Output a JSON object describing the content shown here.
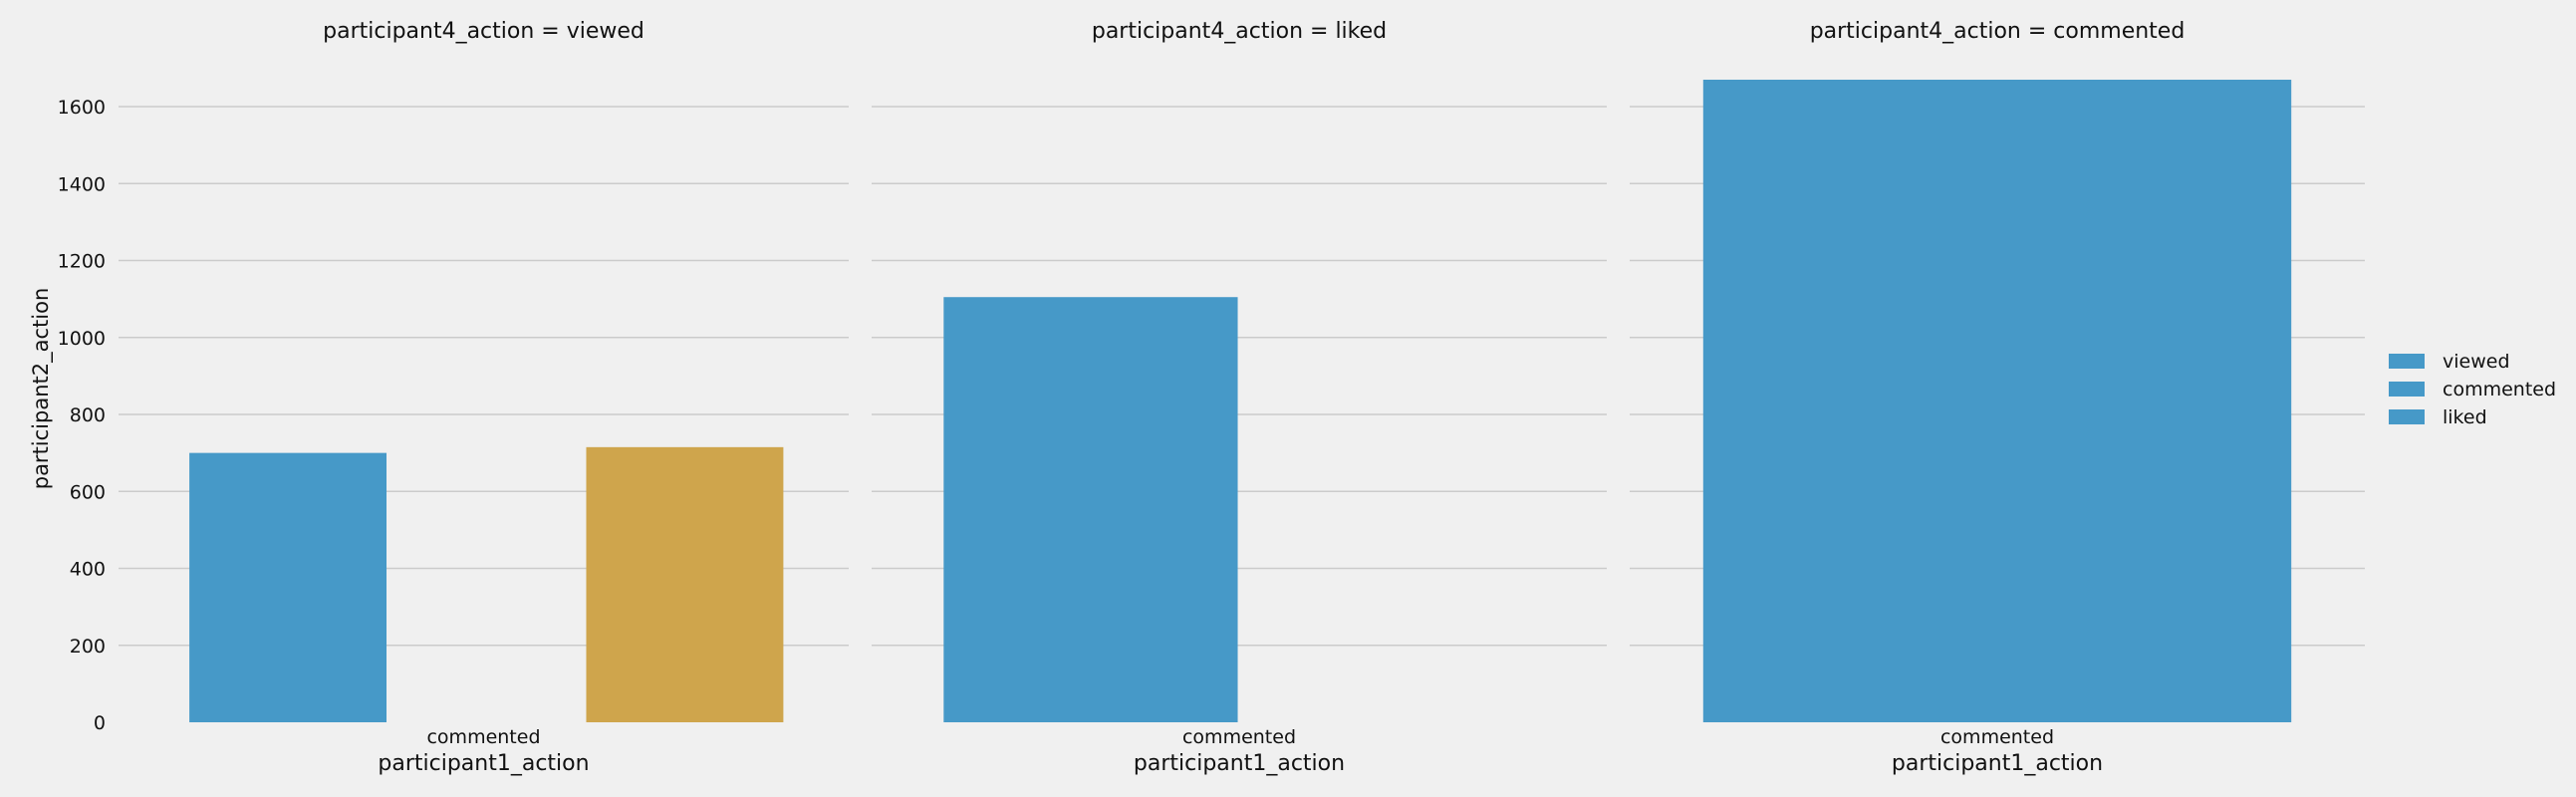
{
  "chart_data": {
    "type": "bar",
    "facet_variable": "participant4_action",
    "xlabel": "participant1_action",
    "ylabel": "participant2_action",
    "ylim": [
      0,
      1670
    ],
    "yticks": [
      0,
      200,
      400,
      600,
      800,
      1000,
      1200,
      1400,
      1600
    ],
    "grid": true,
    "legend": {
      "placement": "right",
      "entries": [
        {
          "label": "viewed",
          "color": "#4699c8"
        },
        {
          "label": "commented",
          "color": "#4699c8"
        },
        {
          "label": "liked",
          "color": "#4699c8"
        }
      ]
    },
    "colors": {
      "blue": "#4699c8",
      "gold": "#cfa54c",
      "background": "#f0f0f0",
      "grid": "#cbcbcb"
    },
    "facets": [
      {
        "title": "participant4_action = viewed",
        "category": "commented",
        "bars": [
          {
            "value": 700,
            "color": "#4699c8"
          },
          {
            "value": 715,
            "color": "#cfa54c"
          }
        ]
      },
      {
        "title": "participant4_action = liked",
        "category": "commented",
        "bars": [
          {
            "value": 1105,
            "color": "#4699c8"
          }
        ]
      },
      {
        "title": "participant4_action = commented",
        "category": "commented",
        "bars": [
          {
            "value": 1670,
            "color": "#4699c8"
          }
        ]
      }
    ]
  }
}
